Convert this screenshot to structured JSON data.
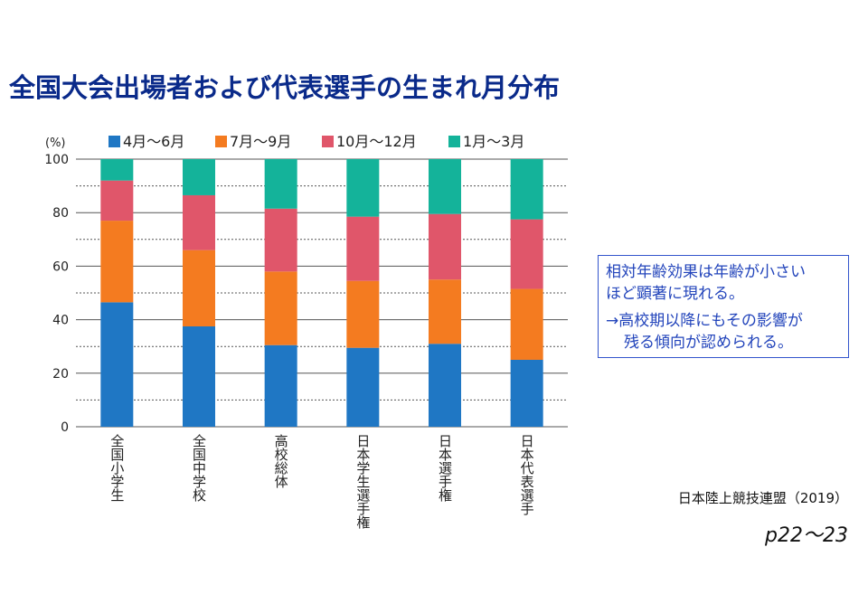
{
  "slide": {
    "title": "全国大会出場者および代表選手の生まれ月分布",
    "note_line1": "相対年齢効果は年齢が小さい",
    "note_line2": "ほど顕著に現れる。",
    "note_line3": "→高校期以降にもその影響が",
    "note_line4": "残る傾向が認められる。",
    "source": "日本陸上競技連盟（2019）",
    "page_ref": "p22～23"
  },
  "chart_data": {
    "type": "bar",
    "stacked": true,
    "percent_stacked": true,
    "unit_label": "(%)",
    "categories": [
      "全国小学生",
      "全国中学校",
      "高校総体",
      "日本学生選手権",
      "日本選手権",
      "日本代表選手"
    ],
    "series": [
      {
        "name": "4月～6月",
        "color": "#1f77c4",
        "values": [
          46.5,
          37.5,
          30.5,
          29.5,
          31,
          25
        ]
      },
      {
        "name": "7月～9月",
        "color": "#f47b20",
        "values": [
          30.5,
          28.5,
          27.5,
          25,
          24,
          26.5
        ]
      },
      {
        "name": "10月～12月",
        "color": "#e0566a",
        "values": [
          15,
          20.5,
          23.5,
          24,
          24.5,
          26
        ]
      },
      {
        "name": "1月～3月",
        "color": "#14b39a",
        "values": [
          8,
          13.5,
          18.5,
          21.5,
          20.5,
          22.5
        ]
      }
    ],
    "ylim": [
      0,
      100
    ],
    "yticks": [
      0,
      20,
      40,
      60,
      80,
      100
    ],
    "grid": true,
    "legend_position": "top"
  }
}
